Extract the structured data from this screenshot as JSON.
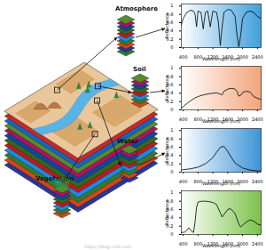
{
  "diagram": {
    "labels": [
      "Atmosphere",
      "Soil",
      "Water",
      "Vegetation"
    ],
    "watermark": "https://blog.csdn.net/"
  },
  "chart_data": [
    {
      "type": "line",
      "x_label": "Wavelength (nm)",
      "y_label": "Reflectance",
      "xlim": [
        350,
        2500
      ],
      "ylim": [
        0,
        1.05
      ],
      "xticks": [
        400,
        800,
        1200,
        1600,
        2000,
        2400
      ],
      "yticks": [
        0,
        0.2,
        0.4,
        0.6,
        0.8,
        1
      ],
      "color": "#000000",
      "x": [
        350,
        400,
        500,
        600,
        680,
        720,
        760,
        800,
        880,
        940,
        1000,
        1060,
        1130,
        1200,
        1300,
        1350,
        1400,
        1450,
        1500,
        1600,
        1700,
        1800,
        1850,
        1900,
        1950,
        2000,
        2100,
        2200,
        2300,
        2400,
        2500
      ],
      "values": [
        0.55,
        0.7,
        0.85,
        0.9,
        0.88,
        0.8,
        0.5,
        0.88,
        0.85,
        0.45,
        0.85,
        0.88,
        0.5,
        0.88,
        0.85,
        0.6,
        0.05,
        0.5,
        0.85,
        0.92,
        0.9,
        0.75,
        0.3,
        0.02,
        0.3,
        0.7,
        0.85,
        0.88,
        0.85,
        0.75,
        0.7
      ]
    },
    {
      "type": "line",
      "x_label": "Wavelength (nm)",
      "y_label": "Reflectance",
      "xlim": [
        350,
        2500
      ],
      "ylim": [
        0,
        1.05
      ],
      "xticks": [
        400,
        800,
        1200,
        1600,
        2000,
        2400
      ],
      "yticks": [
        0,
        0.2,
        0.4,
        0.6,
        0.8,
        1
      ],
      "color": "#000000",
      "x": [
        350,
        400,
        500,
        600,
        700,
        800,
        900,
        1000,
        1100,
        1200,
        1300,
        1400,
        1450,
        1500,
        1600,
        1700,
        1800,
        1850,
        1900,
        1950,
        2000,
        2100,
        2200,
        2250,
        2300,
        2400,
        2500
      ],
      "values": [
        0.05,
        0.08,
        0.15,
        0.22,
        0.28,
        0.32,
        0.35,
        0.37,
        0.39,
        0.4,
        0.41,
        0.38,
        0.36,
        0.45,
        0.5,
        0.52,
        0.5,
        0.45,
        0.33,
        0.35,
        0.42,
        0.45,
        0.43,
        0.38,
        0.32,
        0.28,
        0.25
      ]
    },
    {
      "type": "line",
      "x_label": "Wavelength (nm)",
      "y_label": "Reflectance",
      "xlim": [
        350,
        2500
      ],
      "ylim": [
        0,
        1.05
      ],
      "xticks": [
        400,
        800,
        1200,
        1600,
        2000,
        2400
      ],
      "yticks": [
        0,
        0.2,
        0.4,
        0.6,
        0.8,
        1
      ],
      "color": "#000000",
      "x": [
        350,
        400,
        600,
        800,
        1000,
        1200,
        1300,
        1400,
        1500,
        1600,
        1700,
        1800,
        2000,
        2200,
        2400,
        2500
      ],
      "values": [
        0.05,
        0.06,
        0.08,
        0.12,
        0.2,
        0.35,
        0.48,
        0.6,
        0.62,
        0.5,
        0.35,
        0.22,
        0.1,
        0.05,
        0.03,
        0.03
      ]
    },
    {
      "type": "line",
      "x_label": "Wavelength (nm)",
      "y_label": "Reflectance",
      "xlim": [
        350,
        2500
      ],
      "ylim": [
        0,
        1.05
      ],
      "xticks": [
        400,
        800,
        1200,
        1600,
        2000,
        2400
      ],
      "yticks": [
        0,
        0.2,
        0.4,
        0.6,
        0.8,
        1
      ],
      "color": "#000000",
      "x": [
        350,
        400,
        450,
        500,
        550,
        600,
        650,
        680,
        720,
        760,
        800,
        900,
        1000,
        1100,
        1200,
        1300,
        1400,
        1450,
        1500,
        1600,
        1650,
        1700,
        1800,
        1900,
        1950,
        2000,
        2100,
        2200,
        2300,
        2400,
        2500
      ],
      "values": [
        0.05,
        0.05,
        0.06,
        0.1,
        0.16,
        0.1,
        0.06,
        0.05,
        0.3,
        0.65,
        0.78,
        0.8,
        0.8,
        0.79,
        0.77,
        0.72,
        0.52,
        0.42,
        0.48,
        0.6,
        0.62,
        0.6,
        0.5,
        0.25,
        0.18,
        0.22,
        0.3,
        0.35,
        0.32,
        0.25,
        0.22
      ]
    }
  ]
}
